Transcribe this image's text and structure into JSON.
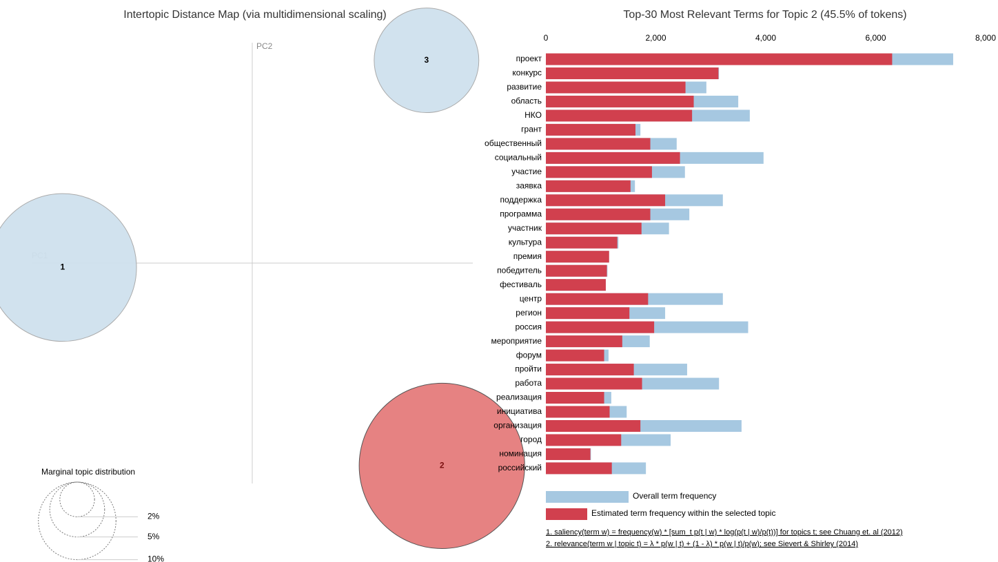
{
  "chart_data": [
    {
      "type": "bubble",
      "title": "Intertopic Distance Map (via multidimensional scaling)",
      "x_label": "PC1",
      "y_label": "PC2",
      "labels": [
        "1",
        "2",
        "3"
      ],
      "x": [
        -0.86,
        0.86,
        0.79
      ],
      "values": [
        -0.02,
        -0.92,
        0.92
      ],
      "sizes": [
        36.3,
        45.5,
        18.2
      ],
      "colors": [
        "#cfe0ed",
        "#e57b7b",
        "#cfe0ed"
      ],
      "xlim": [
        -1,
        1
      ],
      "ylim": [
        -1,
        1
      ],
      "size_legend": {
        "title": "Marginal topic distribution",
        "ticks": [
          {
            "value": 2,
            "label": "2%"
          },
          {
            "value": 5,
            "label": "5%"
          },
          {
            "value": 10,
            "label": "10%"
          }
        ]
      }
    },
    {
      "type": "bar",
      "title": "Top-30 Most Relevant Terms for Topic 2 (45.5% of tokens)",
      "categories": [
        "проект",
        "конкурс",
        "развитие",
        "область",
        "НКО",
        "грант",
        "общественный",
        "социальный",
        "участие",
        "заявка",
        "поддержка",
        "программа",
        "участник",
        "культура",
        "премия",
        "победитель",
        "фестиваль",
        "центр",
        "регион",
        "россия",
        "мероприятие",
        "форум",
        "пройти",
        "работа",
        "реализация",
        "инициатива",
        "организация",
        "город",
        "номинация",
        "российский"
      ],
      "series": [
        {
          "name": "Overall term frequency",
          "color": "#a6c8e1",
          "values": [
            7410,
            3150,
            2920,
            3500,
            3710,
            1720,
            2380,
            3960,
            2530,
            1620,
            3220,
            2610,
            2240,
            1320,
            1150,
            1120,
            1090,
            3220,
            2170,
            3680,
            1890,
            1140,
            2570,
            3150,
            1190,
            1470,
            3560,
            2270,
            820,
            1820
          ]
        },
        {
          "name": "Estimated term frequency within the selected topic",
          "color": "#d1404e",
          "values": [
            6300,
            3140,
            2540,
            2690,
            2660,
            1630,
            1900,
            2440,
            1930,
            1540,
            2170,
            1900,
            1740,
            1300,
            1150,
            1110,
            1090,
            1860,
            1520,
            1970,
            1390,
            1060,
            1600,
            1750,
            1060,
            1160,
            1720,
            1370,
            810,
            1200
          ]
        }
      ],
      "xlim": [
        0,
        8000
      ],
      "xticks": [
        0,
        {
          "value": 2000,
          "label": "2,000"
        },
        {
          "value": 4000,
          "label": "4,000"
        },
        {
          "value": 6000,
          "label": "6,000"
        },
        {
          "value": 8000,
          "label": "8,000"
        }
      ],
      "notes": [
        "1. saliency(term w) = frequency(w) * [sum_t p(t | w) * log(p(t | w)/p(t))] for topics t; see Chuang et. al (2012)",
        "2. relevance(term w | topic t) = λ * p(w | t) + (1 - λ) * p(w | t)/p(w); see Sievert & Shirley (2014)"
      ]
    }
  ]
}
